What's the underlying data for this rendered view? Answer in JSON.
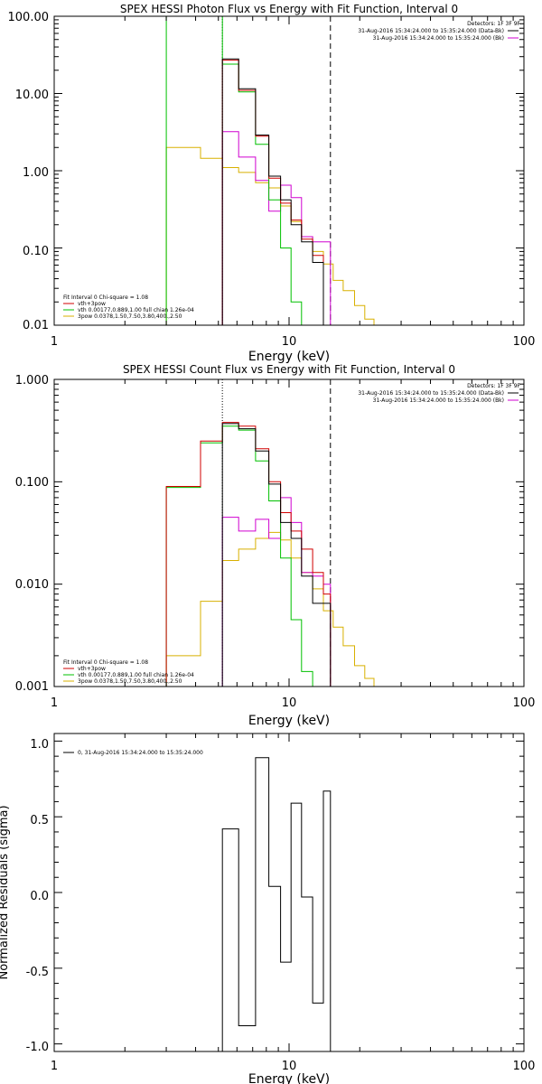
{
  "colors": {
    "total": "#000000",
    "vth_plus_3pow": "#d00000",
    "vth": "#00c000",
    "3pow": "#d8b000",
    "bk": "#d000d0",
    "frame": "#000000"
  },
  "chart_data": [
    {
      "type": "line",
      "panel": "photon",
      "title": "SPEX HESSI Photon Flux vs Energy with Fit Function, Interval 0",
      "xlabel": "Energy (keV)",
      "ylabel": "",
      "xscale": "log",
      "yscale": "log",
      "xlim": [
        1,
        100
      ],
      "ylim": [
        0.01,
        100
      ],
      "xticks": [
        "1",
        "10",
        "100"
      ],
      "yticks": [
        "0.01",
        "0.10",
        "1.00",
        "10.00",
        "100.00"
      ],
      "vlines": [
        {
          "x": 5.2,
          "style": "dotted",
          "color": "#000000"
        },
        {
          "x": 15.0,
          "style": "dashed",
          "color": "#000000"
        }
      ],
      "header_right": [
        "Detectors: 1F 3F 9F"
      ],
      "data_legend": [
        {
          "label": "31-Aug-2016 15:34:24.000 to 15:35:24.000 (Data-Bk)",
          "color": "#000000"
        },
        {
          "label": "31-Aug-2016 15:34:24.000 to 15:35:24.000 (Bk)",
          "color": "#d000d0"
        }
      ],
      "fit_legend": [
        {
          "label": "Fit Interval 0   Chi-square = 1.08",
          "color": "#000000"
        },
        {
          "label": "vth+3pow",
          "color": "#d00000"
        },
        {
          "label": "vth 0.00177,0.889,1.00  full chian 1.26e-04",
          "color": "#00c000"
        },
        {
          "label": "3pow 0.0378,1.50,7.50,3.80,400.,2.50",
          "color": "#d8b000"
        }
      ],
      "series": [
        {
          "name": "Data-Bk",
          "key": "total",
          "edges": [
            5.2,
            6.1,
            7.2,
            8.2,
            9.2,
            10.2,
            11.3,
            12.6,
            14.0
          ],
          "values": [
            28,
            11.5,
            2.9,
            0.85,
            0.42,
            0.2,
            0.12,
            0.065
          ],
          "clip_before": [
            0.01
          ]
        },
        {
          "name": "vth+3pow",
          "key": "vth_plus_3pow",
          "edges": [
            5.2,
            6.1,
            7.2,
            8.2,
            9.2,
            10.2,
            11.3,
            12.6,
            14.0
          ],
          "values": [
            27,
            11.0,
            2.8,
            0.8,
            0.38,
            0.23,
            0.13,
            0.08
          ]
        },
        {
          "name": "vth",
          "key": "vth",
          "edges": [
            3.0,
            4.2,
            5.2,
            6.1,
            7.2,
            8.2,
            9.2,
            10.2,
            11.3,
            12.6
          ],
          "values": [
            100,
            100,
            24,
            10.5,
            2.2,
            0.42,
            0.1,
            0.02,
            0.009
          ]
        },
        {
          "name": "3pow",
          "key": "3pow",
          "edges": [
            3.0,
            4.2,
            5.2,
            6.1,
            7.2,
            8.2,
            9.2,
            10.2,
            11.3,
            12.6,
            14.0,
            15.4,
            17.0,
            19.0,
            21.0,
            23.0
          ],
          "values": [
            2.0,
            1.45,
            1.1,
            0.95,
            0.7,
            0.6,
            0.35,
            0.22,
            0.14,
            0.09,
            0.062,
            0.038,
            0.028,
            0.018,
            0.012
          ]
        },
        {
          "name": "Bk",
          "key": "bk",
          "edges": [
            5.2,
            6.1,
            7.2,
            8.2,
            9.2,
            10.2,
            11.3,
            12.6,
            14.0,
            15.0
          ],
          "values": [
            3.2,
            1.5,
            0.75,
            0.3,
            0.65,
            0.45,
            0.14,
            0.12,
            0.12
          ]
        }
      ]
    },
    {
      "type": "line",
      "panel": "count",
      "title": "SPEX HESSI Count Flux vs Energy with Fit Function, Interval 0",
      "xlabel": "Energy (keV)",
      "ylabel": "",
      "xscale": "log",
      "yscale": "log",
      "xlim": [
        1,
        100
      ],
      "ylim": [
        0.001,
        1
      ],
      "xticks": [
        "1",
        "10",
        "100"
      ],
      "yticks": [
        "0.001",
        "0.010",
        "0.100",
        "1.000"
      ],
      "vlines": [
        {
          "x": 5.2,
          "style": "dotted",
          "color": "#000000"
        },
        {
          "x": 15.0,
          "style": "dashed",
          "color": "#000000"
        }
      ],
      "header_right": [
        "Detectors: 1F 3F 9F"
      ],
      "data_legend": [
        {
          "label": "31-Aug-2016 15:34:24.000 to 15:35:24.000 (Data-Bk)",
          "color": "#000000"
        },
        {
          "label": "31-Aug-2016 15:34:24.000 to 15:35:24.000 (Bk)",
          "color": "#d000d0"
        }
      ],
      "fit_legend": [
        {
          "label": "Fit Interval 0   Chi-square = 1.08",
          "color": "#000000"
        },
        {
          "label": "vth+3pow",
          "color": "#d00000"
        },
        {
          "label": "vth 0.00177,0.889,1.00  full chian 1.26e-04",
          "color": "#00c000"
        },
        {
          "label": "3pow 0.0378,1.50,7.50,3.80,400.,2.50",
          "color": "#d8b000"
        }
      ],
      "series": [
        {
          "name": "Data-Bk",
          "key": "total",
          "edges": [
            5.2,
            6.1,
            7.2,
            8.2,
            9.2,
            10.2,
            11.3,
            12.6,
            14.0,
            15.0
          ],
          "values": [
            0.37,
            0.33,
            0.2,
            0.095,
            0.04,
            0.028,
            0.012,
            0.0065,
            0.0065
          ]
        },
        {
          "name": "vth+3pow",
          "key": "vth_plus_3pow",
          "edges": [
            3.0,
            4.2,
            5.2,
            6.1,
            7.2,
            8.2,
            9.2,
            10.2,
            11.3,
            12.6,
            14.0,
            15.0
          ],
          "values": [
            0.09,
            0.25,
            0.38,
            0.35,
            0.21,
            0.1,
            0.05,
            0.033,
            0.022,
            0.013,
            0.008
          ]
        },
        {
          "name": "vth",
          "key": "vth",
          "edges": [
            3.0,
            4.2,
            5.2,
            6.1,
            7.2,
            8.2,
            9.2,
            10.2,
            11.3,
            12.6
          ],
          "values": [
            0.088,
            0.24,
            0.35,
            0.32,
            0.16,
            0.065,
            0.018,
            0.0045,
            0.0014
          ]
        },
        {
          "name": "3pow",
          "key": "3pow",
          "edges": [
            3.0,
            4.2,
            5.2,
            6.1,
            7.2,
            8.2,
            9.2,
            10.2,
            11.3,
            12.6,
            14.0,
            15.4,
            17.0,
            19.0,
            21.0,
            23.0
          ],
          "values": [
            0.002,
            0.0068,
            0.017,
            0.022,
            0.028,
            0.032,
            0.027,
            0.018,
            0.013,
            0.009,
            0.0055,
            0.0038,
            0.0025,
            0.0016,
            0.0012
          ]
        },
        {
          "name": "Bk",
          "key": "bk",
          "edges": [
            5.2,
            6.1,
            7.2,
            8.2,
            9.2,
            10.2,
            11.3,
            12.6,
            14.0,
            15.0
          ],
          "values": [
            0.045,
            0.033,
            0.043,
            0.028,
            0.07,
            0.04,
            0.013,
            0.012,
            0.01
          ]
        }
      ]
    },
    {
      "type": "line",
      "panel": "residuals",
      "title": "",
      "xlabel": "Energy (keV)",
      "ylabel": "Normalized Residuals (sigma)",
      "xscale": "log",
      "yscale": "linear",
      "xlim": [
        1,
        100
      ],
      "ylim": [
        -1.05,
        1.05
      ],
      "xticks": [
        "1",
        "10",
        "100"
      ],
      "yticks": [
        "-1.0",
        "-0.5",
        "0.0",
        "0.5",
        "1.0"
      ],
      "legend": [
        {
          "label": "0, 31-Aug-2016 15:34:24.000 to 15:35:24.000",
          "color": "#000000"
        }
      ],
      "series": [
        {
          "name": "residuals",
          "key": "total",
          "edges": [
            5.2,
            6.1,
            7.2,
            8.2,
            9.2,
            10.2,
            11.3,
            12.6,
            14.0,
            15.0
          ],
          "values": [
            0.42,
            -0.88,
            0.89,
            0.04,
            -0.46,
            0.59,
            -0.03,
            -0.73,
            0.67
          ]
        }
      ]
    }
  ]
}
